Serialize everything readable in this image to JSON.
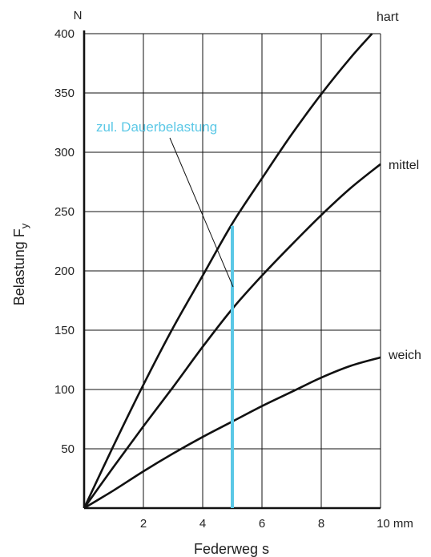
{
  "chart_data": {
    "type": "line",
    "xlabel": "Federweg s",
    "xunit": "mm",
    "ylabel": "Belastung F",
    "ylabel_sub": "y",
    "yunit": "N",
    "xlim": [
      0,
      10
    ],
    "ylim": [
      0,
      400
    ],
    "xticks": [
      2,
      4,
      6,
      8,
      10
    ],
    "xtick_labels": [
      "2",
      "4",
      "6",
      "8",
      "10 mm"
    ],
    "yticks": [
      50,
      100,
      150,
      200,
      250,
      300,
      350,
      400
    ],
    "ytick_labels": [
      "50",
      "100",
      "150",
      "200",
      "250",
      "300",
      "350",
      "400"
    ],
    "grid": true,
    "series": [
      {
        "name": "hart",
        "x": [
          0,
          1,
          2,
          3,
          4,
          5,
          6,
          7,
          8,
          9,
          10
        ],
        "y": [
          0,
          53,
          104,
          152,
          196,
          240,
          278,
          315,
          349,
          380,
          408
        ]
      },
      {
        "name": "mittel",
        "x": [
          0,
          1,
          2,
          3,
          4,
          5,
          6,
          7,
          8,
          9,
          10
        ],
        "y": [
          0,
          35,
          69,
          102,
          136,
          168,
          196,
          222,
          247,
          270,
          290
        ]
      },
      {
        "name": "weich",
        "x": [
          0,
          1,
          2,
          3,
          4,
          5,
          6,
          7,
          8,
          9,
          10
        ],
        "y": [
          0,
          15,
          31,
          46,
          60,
          73,
          86,
          98,
          110,
          120,
          127
        ]
      }
    ],
    "annotation": {
      "text": "zul. Dauerbelastung",
      "x": 5,
      "y_range": [
        0,
        238
      ],
      "color": "#5bc8e6"
    }
  }
}
